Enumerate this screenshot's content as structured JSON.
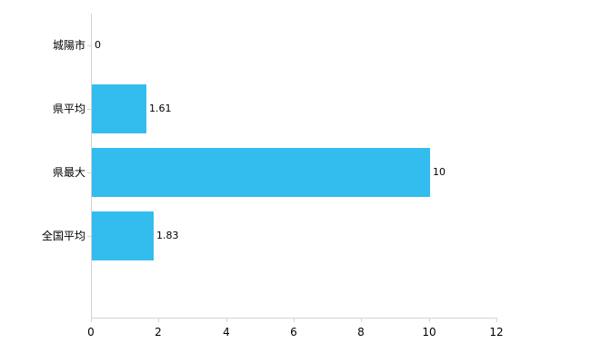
{
  "chart_data": {
    "type": "bar",
    "orientation": "horizontal",
    "title": "",
    "xlabel": "",
    "ylabel": "",
    "categories": [
      "城陽市",
      "県平均",
      "県最大",
      "全国平均"
    ],
    "values": [
      0,
      1.61,
      10,
      1.83
    ],
    "value_labels": [
      "0",
      "1.61",
      "10",
      "1.83"
    ],
    "xlim": [
      0,
      12
    ],
    "x_ticks": [
      0,
      2,
      4,
      6,
      8,
      10,
      12
    ],
    "grid": false,
    "legend": "none",
    "bar_color": "#33bdef",
    "axis_color": "#d3d3d3",
    "text_color": "#000000",
    "background_color": "#ffffff"
  }
}
